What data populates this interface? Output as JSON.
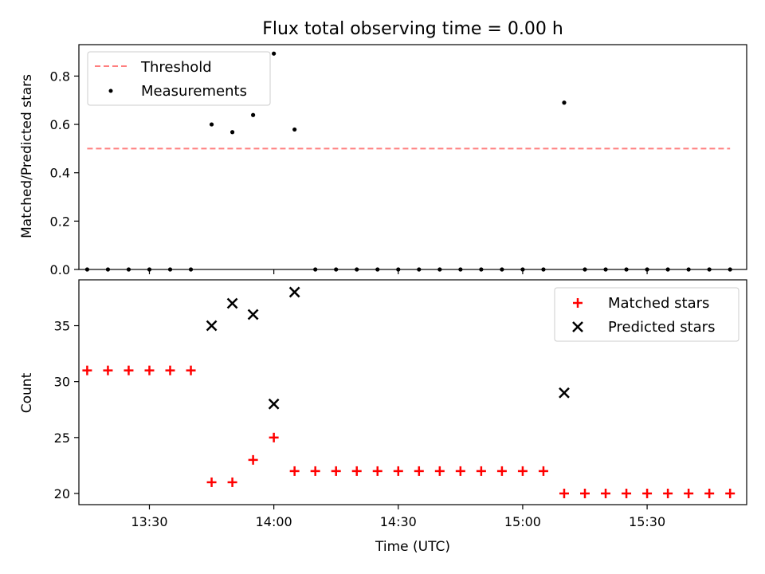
{
  "figure": {
    "title": "Flux total observing time = 0.00 h",
    "x_axis_label": "Time (UTC)"
  },
  "colors": {
    "threshold": "#ff7f7f",
    "measurements": "#000000",
    "matched": "#ff0000",
    "predicted": "#000000"
  },
  "chart_data": [
    {
      "type": "scatter",
      "xlabel": "",
      "ylabel": "Matched/Predicted stars",
      "xlim": [
        "13:13",
        "15:54"
      ],
      "ylim": [
        0,
        0.93
      ],
      "x_ticks": [
        "13:30",
        "14:00",
        "14:30",
        "15:00",
        "15:30"
      ],
      "x_tick_labels_visible": false,
      "y_ticks": [
        "0.0",
        "0.2",
        "0.4",
        "0.6",
        "0.8"
      ],
      "legend": {
        "position": "top-left",
        "entries": [
          "Threshold",
          "Measurements"
        ]
      },
      "grid": false,
      "lines": [
        {
          "name": "Threshold",
          "style": "dashed",
          "x": [
            "13:15",
            "15:50"
          ],
          "y": [
            0.5,
            0.5
          ]
        }
      ],
      "series": [
        {
          "name": "Measurements",
          "marker": "dot",
          "x": [
            "13:15",
            "13:20",
            "13:25",
            "13:30",
            "13:35",
            "13:40",
            "13:45",
            "13:50",
            "13:55",
            "14:00",
            "14:05",
            "14:10",
            "14:15",
            "14:20",
            "14:25",
            "14:30",
            "14:35",
            "14:40",
            "14:45",
            "14:50",
            "14:55",
            "15:00",
            "15:05",
            "15:10",
            "15:15",
            "15:20",
            "15:25",
            "15:30",
            "15:35",
            "15:40",
            "15:45",
            "15:50"
          ],
          "y": [
            0,
            0,
            0,
            0,
            0,
            0,
            0.6,
            0.568,
            0.639,
            0.893,
            0.579,
            0,
            0,
            0,
            0,
            0,
            0,
            0,
            0,
            0,
            0,
            0,
            0,
            0.69,
            0,
            0,
            0,
            0,
            0,
            0,
            0,
            0
          ]
        }
      ]
    },
    {
      "type": "scatter",
      "xlabel": "Time (UTC)",
      "ylabel": "Count",
      "xlim": [
        "13:13",
        "15:54"
      ],
      "ylim": [
        19,
        39.1
      ],
      "x_ticks": [
        "13:30",
        "14:00",
        "14:30",
        "15:00",
        "15:30"
      ],
      "y_ticks": [
        "20",
        "25",
        "30",
        "35"
      ],
      "legend": {
        "position": "top-right",
        "entries": [
          "Matched stars",
          "Predicted stars"
        ]
      },
      "grid": false,
      "series": [
        {
          "name": "Matched stars",
          "marker": "plus",
          "x": [
            "13:15",
            "13:20",
            "13:25",
            "13:30",
            "13:35",
            "13:40",
            "13:45",
            "13:50",
            "13:55",
            "14:00",
            "14:05",
            "14:10",
            "14:15",
            "14:20",
            "14:25",
            "14:30",
            "14:35",
            "14:40",
            "14:45",
            "14:50",
            "14:55",
            "15:00",
            "15:05",
            "15:10",
            "15:15",
            "15:20",
            "15:25",
            "15:30",
            "15:35",
            "15:40",
            "15:45",
            "15:50"
          ],
          "y": [
            31,
            31,
            31,
            31,
            31,
            31,
            21,
            21,
            23,
            25,
            22,
            22,
            22,
            22,
            22,
            22,
            22,
            22,
            22,
            22,
            22,
            22,
            22,
            20,
            20,
            20,
            20,
            20,
            20,
            20,
            20,
            20
          ]
        },
        {
          "name": "Predicted stars",
          "marker": "cross",
          "x": [
            "13:45",
            "13:50",
            "13:55",
            "14:00",
            "14:05",
            "15:10"
          ],
          "y": [
            35,
            37,
            36,
            28,
            38,
            29
          ]
        }
      ]
    }
  ]
}
